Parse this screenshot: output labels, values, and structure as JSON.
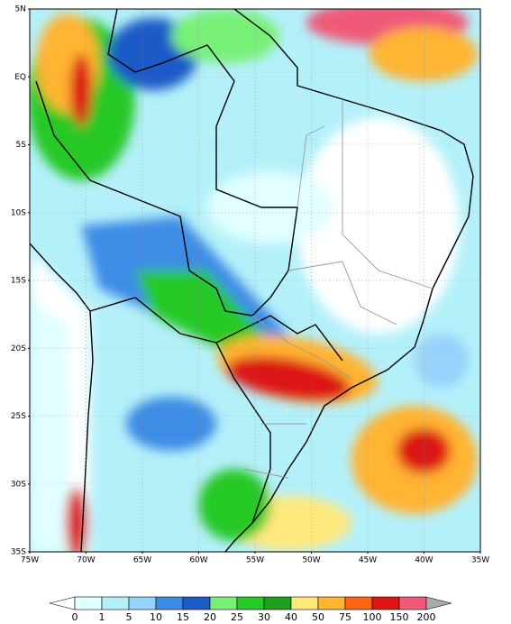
{
  "map": {
    "lat_labels": [
      "5N",
      "EQ",
      "5S",
      "10S",
      "15S",
      "20S",
      "25S",
      "30S",
      "35S"
    ],
    "lon_labels": [
      "75W",
      "70W",
      "65W",
      "60W",
      "55W",
      "50W",
      "45W",
      "40W",
      "35W"
    ],
    "colorbar": {
      "levels": [
        0,
        1,
        5,
        10,
        15,
        20,
        25,
        30,
        40,
        50,
        75,
        100,
        150,
        200
      ],
      "colors": [
        "#ffffff",
        "#e1ffff",
        "#b4f0fa",
        "#96d2fa",
        "#3c8ce6",
        "#1e5ac8",
        "#78f078",
        "#28c828",
        "#1ea01e",
        "#ffe87c",
        "#ffb432",
        "#ff6414",
        "#dc1414",
        "#f05a78",
        "#aaaaaa"
      ]
    }
  }
}
